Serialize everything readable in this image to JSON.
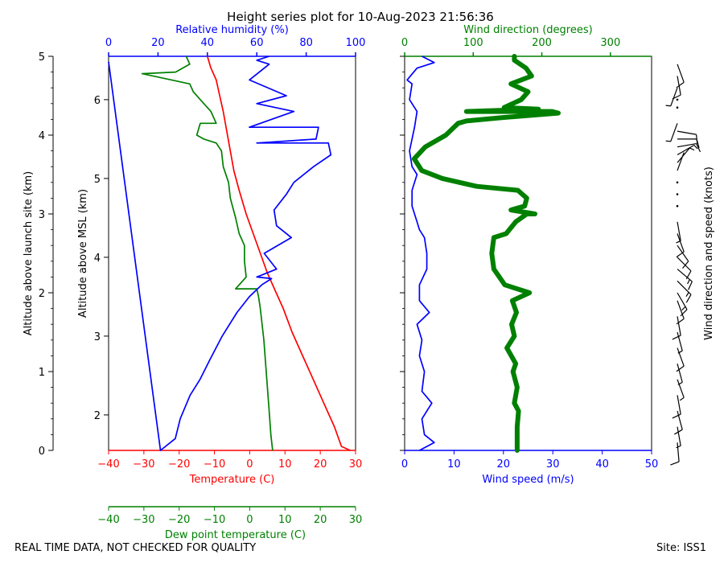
{
  "figure": {
    "title": "Height series plot for 10-Aug-2023 21:56:36",
    "footer_left": "REAL TIME DATA, NOT CHECKED FOR QUALITY",
    "footer_right": "Site: ISS1"
  },
  "colors": {
    "temperature": "#ff0000",
    "dewpoint": "#008000",
    "rh": "#0000ff",
    "wind_speed": "#0000ff",
    "wind_dir": "#008000",
    "barb": "#000000"
  },
  "chart_data": [
    {
      "type": "line",
      "name": "thermo-panel",
      "ylabel_site": "Altitude above launch site (km)",
      "ylabel_msl": "Altitude above MSL (km)",
      "ylim_site_km": [
        0,
        5
      ],
      "ylim_msl_km": [
        1.55,
        6.55
      ],
      "yticks_site": [
        "0",
        "1",
        "2",
        "3",
        "4",
        "5"
      ],
      "yticks_msl": [
        "2",
        "3",
        "4",
        "5",
        "6"
      ],
      "ytick_values_site": [
        0,
        1,
        2,
        3,
        4,
        5
      ],
      "ytick_values_msl": [
        2,
        3,
        4,
        5,
        6
      ],
      "temperature_axis": {
        "label": "Temperature (C)",
        "range": [
          -40,
          30
        ],
        "ticks": [
          "−40",
          "−30",
          "−20",
          "−10",
          "0",
          "10",
          "20",
          "30"
        ],
        "tick_values": [
          -40,
          -30,
          -20,
          -10,
          0,
          10,
          20,
          30
        ]
      },
      "dewpoint_axis": {
        "label": "Dew point temperature (C)",
        "range": [
          -40,
          30
        ],
        "ticks": [
          "−40",
          "−30",
          "−20",
          "−10",
          "0",
          "10",
          "20",
          "30"
        ],
        "tick_values": [
          -40,
          -30,
          -20,
          -10,
          0,
          10,
          20,
          30
        ]
      },
      "rh_axis": {
        "label": "Relative humidity (%)",
        "range": [
          0,
          100
        ],
        "ticks": [
          "0",
          "20",
          "40",
          "60",
          "80",
          "100"
        ],
        "tick_values": [
          0,
          20,
          40,
          60,
          80,
          100
        ]
      },
      "series": [
        {
          "name": "Temperature",
          "axis": "temperature",
          "points": [
            [
              28.5,
              0
            ],
            [
              26,
              0.05
            ],
            [
              24,
              0.3
            ],
            [
              21,
              0.6
            ],
            [
              18,
              0.9
            ],
            [
              15,
              1.2
            ],
            [
              12,
              1.5
            ],
            [
              9.5,
              1.8
            ],
            [
              7.5,
              2.0
            ],
            [
              5,
              2.25
            ],
            [
              3,
              2.5
            ],
            [
              1,
              2.75
            ],
            [
              -1,
              3.0
            ],
            [
              -3,
              3.3
            ],
            [
              -4.5,
              3.55
            ],
            [
              -5.5,
              3.8
            ],
            [
              -6.5,
              4.05
            ],
            [
              -7.5,
              4.3
            ],
            [
              -8.5,
              4.5
            ],
            [
              -9.5,
              4.7
            ],
            [
              -11,
              4.85
            ],
            [
              -12,
              5.0
            ]
          ]
        },
        {
          "name": "Dew point",
          "axis": "dewpoint",
          "points": [
            [
              6.5,
              0
            ],
            [
              6,
              0.2
            ],
            [
              5.5,
              0.5
            ],
            [
              5,
              0.8
            ],
            [
              4.5,
              1.1
            ],
            [
              4,
              1.4
            ],
            [
              3.5,
              1.6
            ],
            [
              3,
              1.8
            ],
            [
              2.5,
              1.95
            ],
            [
              2,
              2.05
            ],
            [
              -4,
              2.05
            ],
            [
              -1,
              2.2
            ],
            [
              -1.5,
              2.4
            ],
            [
              -1.5,
              2.6
            ],
            [
              -3,
              2.75
            ],
            [
              -4,
              2.95
            ],
            [
              -5.5,
              3.2
            ],
            [
              -6,
              3.4
            ],
            [
              -7.5,
              3.6
            ],
            [
              -8,
              3.8
            ],
            [
              -9.5,
              3.9
            ],
            [
              -13,
              3.95
            ],
            [
              -15,
              4.0
            ],
            [
              -14,
              4.15
            ],
            [
              -9.5,
              4.15
            ],
            [
              -11,
              4.3
            ],
            [
              -14,
              4.45
            ],
            [
              -16,
              4.55
            ],
            [
              -17,
              4.65
            ],
            [
              -30.5,
              4.78
            ],
            [
              -21,
              4.8
            ],
            [
              -17,
              4.9
            ],
            [
              -18,
              5.0
            ]
          ]
        },
        {
          "name": "Relative humidity",
          "axis": "rh",
          "points": [
            [
              0,
              4.93
            ],
            [
              21,
              0
            ],
            [
              27,
              0.15
            ],
            [
              29,
              0.4
            ],
            [
              33,
              0.7
            ],
            [
              37,
              0.9
            ],
            [
              41,
              1.15
            ],
            [
              46,
              1.45
            ],
            [
              52,
              1.75
            ],
            [
              57,
              1.95
            ],
            [
              62,
              2.1
            ],
            [
              66,
              2.18
            ],
            [
              60,
              2.2
            ],
            [
              68,
              2.3
            ],
            [
              63,
              2.5
            ],
            [
              74,
              2.7
            ],
            [
              68,
              2.85
            ],
            [
              67,
              3.05
            ],
            [
              72,
              3.25
            ],
            [
              75,
              3.4
            ],
            [
              83,
              3.6
            ],
            [
              90,
              3.75
            ],
            [
              89,
              3.9
            ],
            [
              60,
              3.9
            ],
            [
              84,
              3.95
            ],
            [
              85,
              4.1
            ],
            [
              57,
              4.1
            ],
            [
              75,
              4.3
            ],
            [
              60,
              4.4
            ],
            [
              72,
              4.5
            ],
            [
              57,
              4.7
            ],
            [
              65,
              4.9
            ],
            [
              60,
              4.95
            ],
            [
              65,
              5.0
            ]
          ]
        }
      ]
    },
    {
      "type": "line",
      "name": "wind-panel",
      "ylim_site_km": [
        0,
        5
      ],
      "wind_speed_axis": {
        "label": "Wind speed (m/s)",
        "range": [
          0,
          50
        ],
        "ticks": [
          "0",
          "10",
          "20",
          "30",
          "40",
          "50"
        ],
        "tick_values": [
          0,
          10,
          20,
          30,
          40,
          50
        ]
      },
      "wind_dir_axis": {
        "label": "Wind direction (degrees)",
        "range": [
          0,
          360
        ],
        "ticks": [
          "0",
          "100",
          "200",
          "300"
        ],
        "tick_values": [
          0,
          100,
          200,
          300
        ]
      },
      "barb_label": "Wind direction and speed (knots)",
      "series": [
        {
          "name": "Wind speed",
          "axis": "wind_speed",
          "points": [
            [
              3,
              0
            ],
            [
              6,
              0.1
            ],
            [
              4,
              0.2
            ],
            [
              3.5,
              0.4
            ],
            [
              5.5,
              0.6
            ],
            [
              3.5,
              0.75
            ],
            [
              4,
              1
            ],
            [
              3,
              1.2
            ],
            [
              3.5,
              1.4
            ],
            [
              2.5,
              1.6
            ],
            [
              5,
              1.75
            ],
            [
              3,
              1.9
            ],
            [
              3,
              2.1
            ],
            [
              4.5,
              2.3
            ],
            [
              4.5,
              2.5
            ],
            [
              4,
              2.7
            ],
            [
              3,
              2.8
            ],
            [
              2.5,
              2.9
            ],
            [
              1.5,
              3.1
            ],
            [
              1.5,
              3.3
            ],
            [
              2.5,
              3.5
            ],
            [
              1.5,
              3.6
            ],
            [
              1,
              3.8
            ],
            [
              2,
              4.1
            ],
            [
              2.5,
              4.3
            ],
            [
              1,
              4.45
            ],
            [
              1.5,
              4.65
            ],
            [
              0.5,
              4.7
            ],
            [
              2.5,
              4.85
            ],
            [
              6,
              4.92
            ],
            [
              3.5,
              5.0
            ]
          ]
        },
        {
          "name": "Wind direction",
          "axis": "wind_dir",
          "points": [
            [
              164,
              0
            ],
            [
              164,
              0.3
            ],
            [
              166,
              0.5
            ],
            [
              160,
              0.6
            ],
            [
              164,
              0.8
            ],
            [
              158,
              1.0
            ],
            [
              162,
              1.1
            ],
            [
              149,
              1.3
            ],
            [
              160,
              1.45
            ],
            [
              156,
              1.6
            ],
            [
              163,
              1.75
            ],
            [
              157,
              1.9
            ],
            [
              182,
              2.0
            ],
            [
              146,
              2.1
            ],
            [
              130,
              2.3
            ],
            [
              127,
              2.5
            ],
            [
              130,
              2.7
            ],
            [
              148,
              2.75
            ],
            [
              162,
              2.9
            ],
            [
              178,
              3.0
            ],
            [
              190,
              3.0
            ],
            [
              155,
              3.05
            ],
            [
              175,
              3.1
            ],
            [
              178,
              3.2
            ],
            [
              165,
              3.3
            ],
            [
              105,
              3.35
            ],
            [
              55,
              3.45
            ],
            [
              25,
              3.55
            ],
            [
              14,
              3.7
            ],
            [
              30,
              3.85
            ],
            [
              60,
              4.0
            ],
            [
              78,
              4.15
            ],
            [
              90,
              4.18
            ],
            [
              140,
              4.22
            ],
            [
              224,
              4.28
            ],
            [
              215,
              4.3
            ],
            [
              90,
              4.3
            ],
            [
              195,
              4.33
            ],
            [
              145,
              4.35
            ],
            [
              170,
              4.45
            ],
            [
              180,
              4.55
            ],
            [
              155,
              4.65
            ],
            [
              185,
              4.75
            ],
            [
              177,
              4.85
            ],
            [
              160,
              4.95
            ],
            [
              160,
              5.0
            ]
          ]
        }
      ],
      "barbs": [
        {
          "alt": 0.1,
          "dir": 175,
          "spd": 10
        },
        {
          "alt": 0.3,
          "dir": 170,
          "spd": 9
        },
        {
          "alt": 0.5,
          "dir": 165,
          "spd": 10
        },
        {
          "alt": 0.7,
          "dir": 170,
          "spd": 11
        },
        {
          "alt": 0.9,
          "dir": 160,
          "spd": 9
        },
        {
          "alt": 1.1,
          "dir": 165,
          "spd": 8
        },
        {
          "alt": 1.3,
          "dir": 160,
          "spd": 10
        },
        {
          "alt": 1.5,
          "dir": 165,
          "spd": 9
        },
        {
          "alt": 1.7,
          "dir": 170,
          "spd": 12
        },
        {
          "alt": 1.9,
          "dir": 160,
          "spd": 10
        },
        {
          "alt": 2.0,
          "dir": 150,
          "spd": 15
        },
        {
          "alt": 2.15,
          "dir": 135,
          "spd": 16
        },
        {
          "alt": 2.3,
          "dir": 130,
          "spd": 15
        },
        {
          "alt": 2.45,
          "dir": 135,
          "spd": 14
        },
        {
          "alt": 2.6,
          "dir": 145,
          "spd": 12
        },
        {
          "alt": 2.75,
          "dir": 160,
          "spd": 10
        },
        {
          "alt": 2.9,
          "dir": 170,
          "spd": 6
        },
        {
          "alt": 3.1,
          "dir": 180,
          "spd": 2
        },
        {
          "alt": 3.25,
          "dir": 180,
          "spd": 2
        },
        {
          "alt": 3.4,
          "dir": 180,
          "spd": 2
        },
        {
          "alt": 3.55,
          "dir": 20,
          "spd": 4
        },
        {
          "alt": 3.65,
          "dir": 40,
          "spd": 6
        },
        {
          "alt": 3.75,
          "dir": 60,
          "spd": 8
        },
        {
          "alt": 3.85,
          "dir": 80,
          "spd": 10
        },
        {
          "alt": 3.95,
          "dir": 90,
          "spd": 12
        },
        {
          "alt": 4.05,
          "dir": 100,
          "spd": 10
        },
        {
          "alt": 4.15,
          "dir": 200,
          "spd": 6
        },
        {
          "alt": 4.35,
          "dir": 180,
          "spd": 2
        },
        {
          "alt": 4.45,
          "dir": 180,
          "spd": 2
        },
        {
          "alt": 4.6,
          "dir": 200,
          "spd": 8
        },
        {
          "alt": 4.75,
          "dir": 170,
          "spd": 10
        },
        {
          "alt": 4.9,
          "dir": 160,
          "spd": 14
        }
      ]
    }
  ]
}
